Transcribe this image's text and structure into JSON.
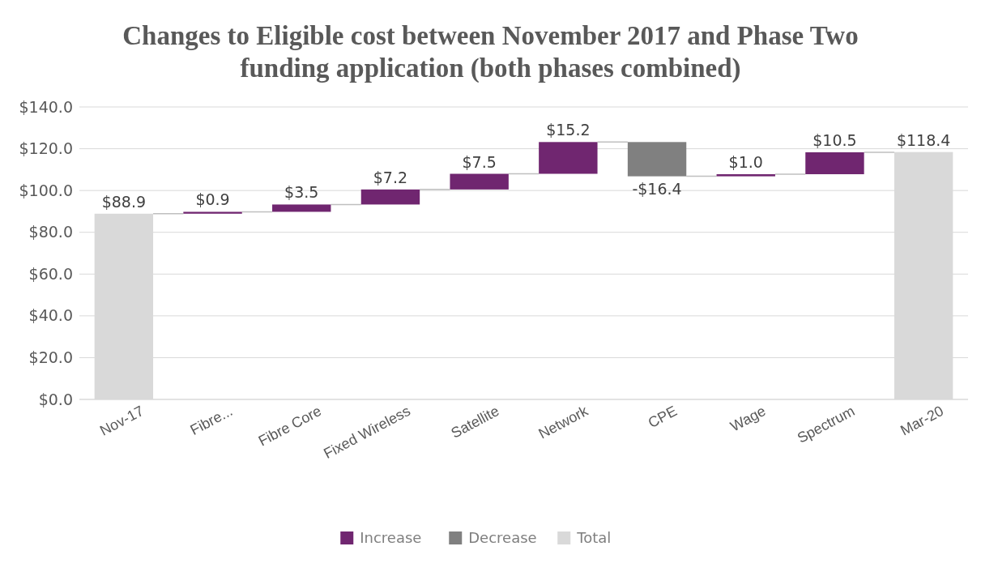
{
  "chart_data": {
    "type": "bar",
    "title": "Changes to Eligible cost between November 2017 and Phase Two funding application (both phases combined)",
    "categories": [
      "Nov-17",
      "Fibre...",
      "Fibre Core",
      "Fixed Wireless",
      "Satellite",
      "Network",
      "CPE",
      "Wage",
      "Spectrum",
      "Mar-20"
    ],
    "series": [
      {
        "name": "Increase",
        "color": "#702670",
        "values": [
          null,
          0.9,
          3.5,
          7.2,
          7.5,
          15.2,
          null,
          1.0,
          10.5,
          null
        ],
        "base": [
          null,
          88.9,
          89.8,
          93.3,
          100.5,
          108.0,
          null,
          106.8,
          107.8,
          null
        ],
        "value_labels": [
          null,
          "$0.9",
          "$3.5",
          "$7.2",
          "$7.5",
          "$15.2",
          null,
          "$1.0",
          "$10.5",
          null
        ]
      },
      {
        "name": "Decrease",
        "color": "#808080",
        "values": [
          null,
          null,
          null,
          null,
          null,
          null,
          -16.4,
          null,
          null,
          null
        ],
        "base": [
          null,
          null,
          null,
          null,
          null,
          null,
          123.2,
          null,
          null,
          null
        ],
        "value_labels": [
          null,
          null,
          null,
          null,
          null,
          null,
          "-$16.4",
          null,
          null,
          null
        ]
      },
      {
        "name": "Total",
        "color": "#d9d9d9",
        "values": [
          88.9,
          null,
          null,
          null,
          null,
          null,
          null,
          null,
          null,
          118.4
        ],
        "base": [
          0,
          null,
          null,
          null,
          null,
          null,
          null,
          null,
          null,
          0
        ],
        "value_labels": [
          "$88.9",
          null,
          null,
          null,
          null,
          null,
          null,
          null,
          null,
          "$118.4"
        ]
      }
    ],
    "ylim": [
      0,
      140
    ],
    "yticks": [
      {
        "value": 0,
        "label": "$0.0"
      },
      {
        "value": 20,
        "label": "$20.0"
      },
      {
        "value": 40,
        "label": "$40.0"
      },
      {
        "value": 60,
        "label": "$60.0"
      },
      {
        "value": 80,
        "label": "$80.0"
      },
      {
        "value": 100,
        "label": "$100.0"
      },
      {
        "value": 120,
        "label": "$120.0"
      },
      {
        "value": 140,
        "label": "$140.0"
      }
    ],
    "grid": "y",
    "legend": "bottom"
  }
}
